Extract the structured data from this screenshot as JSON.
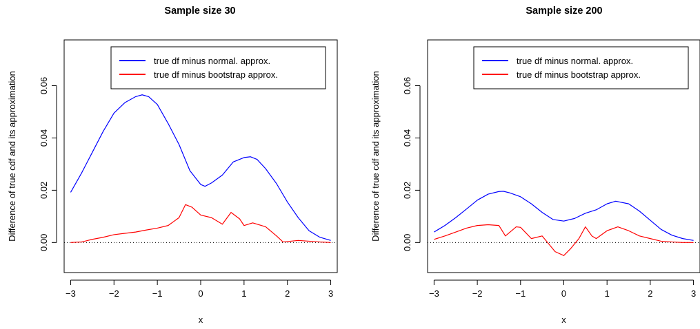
{
  "figure": {
    "background": "#ffffff"
  },
  "chart_data": [
    {
      "type": "line",
      "title": "Sample size 30",
      "xlabel": "x",
      "ylabel": "Difference of true cdf and its approximation",
      "xlim": [
        -3.15,
        3.15
      ],
      "ylim": [
        -0.0115,
        0.0775
      ],
      "x_ticks": [
        -3,
        -2,
        -1,
        0,
        1,
        2,
        3
      ],
      "y_ticks": [
        0.0,
        0.02,
        0.04,
        0.06
      ],
      "x_tick_labels": [
        "−3",
        "−2",
        "−1",
        "0",
        "1",
        "2",
        "3"
      ],
      "y_tick_labels": [
        "0.00",
        "0.02",
        "0.04",
        "0.06"
      ],
      "grid": false,
      "legend_position": "top-right",
      "reference_line": {
        "y": 0,
        "style": "dotted",
        "color": "#000000"
      },
      "series": [
        {
          "name": "true df minus normal. approx.",
          "color": "#0000ff",
          "x": [
            -3.0,
            -2.75,
            -2.5,
            -2.25,
            -2.0,
            -1.75,
            -1.5,
            -1.35,
            -1.2,
            -1.0,
            -0.75,
            -0.5,
            -0.25,
            0.0,
            0.1,
            0.25,
            0.5,
            0.75,
            1.0,
            1.15,
            1.3,
            1.5,
            1.75,
            2.0,
            2.25,
            2.5,
            2.75,
            3.0
          ],
          "y": [
            0.0192,
            0.0265,
            0.0345,
            0.0425,
            0.0495,
            0.0535,
            0.0558,
            0.0565,
            0.0558,
            0.0528,
            0.0455,
            0.0375,
            0.0275,
            0.0222,
            0.0215,
            0.0228,
            0.0258,
            0.0308,
            0.0325,
            0.0328,
            0.0318,
            0.0282,
            0.0225,
            0.0155,
            0.0095,
            0.0045,
            0.002,
            0.0008
          ]
        },
        {
          "name": "true df minus bootstrap approx.",
          "color": "#ff0000",
          "x": [
            -3.0,
            -2.75,
            -2.5,
            -2.25,
            -2.0,
            -1.75,
            -1.5,
            -1.25,
            -1.0,
            -0.75,
            -0.5,
            -0.35,
            -0.2,
            0.0,
            0.25,
            0.5,
            0.7,
            0.9,
            1.0,
            1.2,
            1.5,
            1.75,
            1.9,
            2.25,
            2.5,
            2.75,
            3.0
          ],
          "y": [
            0.0,
            0.0002,
            0.0012,
            0.002,
            0.003,
            0.0035,
            0.004,
            0.0048,
            0.0055,
            0.0065,
            0.0095,
            0.0145,
            0.0135,
            0.0105,
            0.0095,
            0.007,
            0.0115,
            0.009,
            0.0065,
            0.0075,
            0.006,
            0.0025,
            0.0002,
            0.0008,
            0.0005,
            0.0002,
            0.0
          ]
        }
      ]
    },
    {
      "type": "line",
      "title": "Sample size 200",
      "xlabel": "x",
      "ylabel": "Difference of true cdf and its approximation",
      "xlim": [
        -3.15,
        3.15
      ],
      "ylim": [
        -0.0115,
        0.0775
      ],
      "x_ticks": [
        -3,
        -2,
        -1,
        0,
        1,
        2,
        3
      ],
      "y_ticks": [
        0.0,
        0.02,
        0.04,
        0.06
      ],
      "x_tick_labels": [
        "−3",
        "−2",
        "−1",
        "0",
        "1",
        "2",
        "3"
      ],
      "y_tick_labels": [
        "0.00",
        "0.02",
        "0.04",
        "0.06"
      ],
      "grid": false,
      "legend_position": "top-right",
      "reference_line": {
        "y": 0,
        "style": "dotted",
        "color": "#000000"
      },
      "series": [
        {
          "name": "true df minus normal. approx.",
          "color": "#0000ff",
          "x": [
            -3.0,
            -2.75,
            -2.5,
            -2.25,
            -2.0,
            -1.75,
            -1.5,
            -1.4,
            -1.25,
            -1.0,
            -0.75,
            -0.5,
            -0.25,
            0.0,
            0.25,
            0.5,
            0.75,
            1.0,
            1.2,
            1.5,
            1.75,
            2.0,
            2.25,
            2.5,
            2.75,
            3.0
          ],
          "y": [
            0.004,
            0.0065,
            0.0095,
            0.0128,
            0.0162,
            0.0185,
            0.0195,
            0.0196,
            0.019,
            0.0175,
            0.0148,
            0.0115,
            0.0088,
            0.0082,
            0.0092,
            0.0112,
            0.0125,
            0.0148,
            0.0158,
            0.0148,
            0.012,
            0.0085,
            0.005,
            0.0028,
            0.0015,
            0.0008
          ]
        },
        {
          "name": "true df minus bootstrap approx.",
          "color": "#ff0000",
          "x": [
            -3.0,
            -2.75,
            -2.5,
            -2.25,
            -2.0,
            -1.75,
            -1.5,
            -1.35,
            -1.1,
            -1.0,
            -0.75,
            -0.5,
            -0.35,
            -0.2,
            0.0,
            0.15,
            0.35,
            0.5,
            0.65,
            0.75,
            1.0,
            1.25,
            1.5,
            1.75,
            2.0,
            2.25,
            2.5,
            2.75,
            3.0
          ],
          "y": [
            0.0012,
            0.0025,
            0.004,
            0.0055,
            0.0065,
            0.0068,
            0.0065,
            0.0025,
            0.006,
            0.0058,
            0.0015,
            0.0025,
            -0.0005,
            -0.0035,
            -0.005,
            -0.0025,
            0.0015,
            0.006,
            0.0025,
            0.0015,
            0.0045,
            0.006,
            0.0045,
            0.0025,
            0.0015,
            0.0005,
            0.0002,
            0.0,
            0.0
          ]
        }
      ]
    }
  ]
}
